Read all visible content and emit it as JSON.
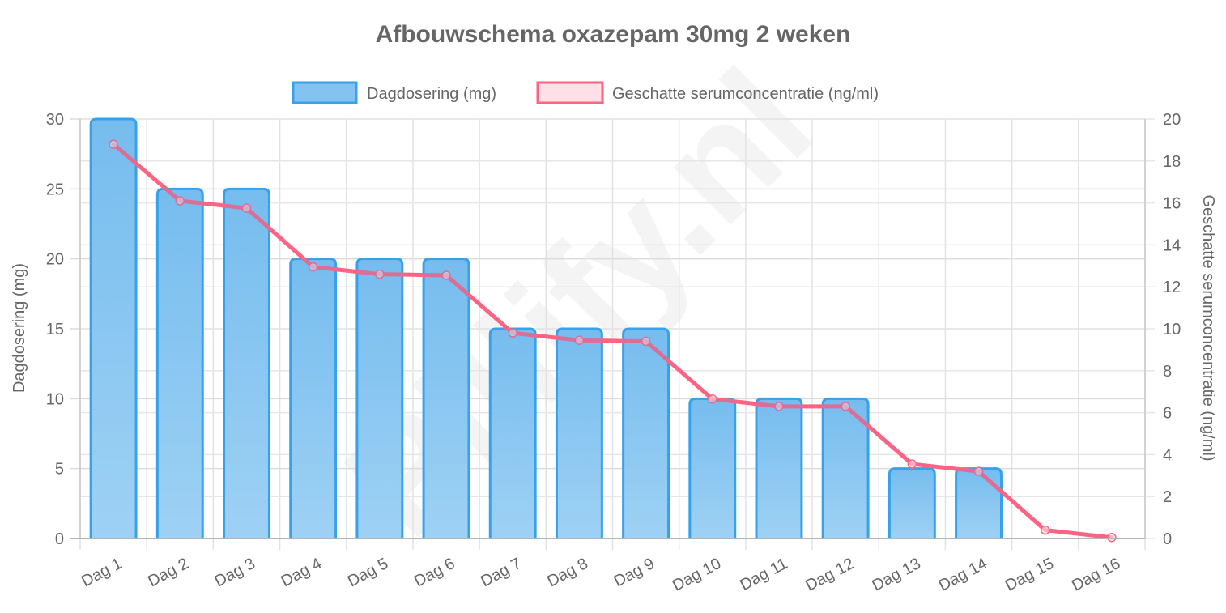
{
  "chart_data": {
    "type": "bar",
    "title": "Afbouwschema oxazepam 30mg 2 weken",
    "categories": [
      "Dag 1",
      "Dag 2",
      "Dag 3",
      "Dag 4",
      "Dag 5",
      "Dag 6",
      "Dag 7",
      "Dag 8",
      "Dag 9",
      "Dag 10",
      "Dag 11",
      "Dag 12",
      "Dag 13",
      "Dag 14",
      "Dag 15",
      "Dag 16"
    ],
    "series": [
      {
        "name": "Dagdosering (mg)",
        "type": "bar",
        "axis": "left",
        "values": [
          30,
          25,
          25,
          20,
          20,
          20,
          15,
          15,
          15,
          10,
          10,
          10,
          5,
          5,
          0,
          0
        ],
        "color": "#36a2eb",
        "fill": "#8ec8f2"
      },
      {
        "name": "Geschatte serumconcentratie (ng/ml)",
        "type": "line",
        "axis": "right",
        "values": [
          18.8,
          16.1,
          15.75,
          12.95,
          12.6,
          12.55,
          9.8,
          9.45,
          9.4,
          6.65,
          6.3,
          6.3,
          3.55,
          3.2,
          0.4,
          0.05
        ],
        "color": "#ff6384",
        "fill": "#ffe0e6"
      }
    ],
    "xlabel": "",
    "ylabel": "Dagdosering (mg)",
    "y2label": "Geschatte serumconcentratie (ng/ml)",
    "ylim": [
      0,
      30
    ],
    "y2lim": [
      0,
      20
    ],
    "yticks": [
      0,
      5,
      10,
      15,
      20,
      25,
      30
    ],
    "y2ticks": [
      0,
      2,
      4,
      6,
      8,
      10,
      12,
      14,
      16,
      18,
      20
    ],
    "grid": true,
    "legend_position": "top"
  },
  "watermark": "Pillify.nl"
}
